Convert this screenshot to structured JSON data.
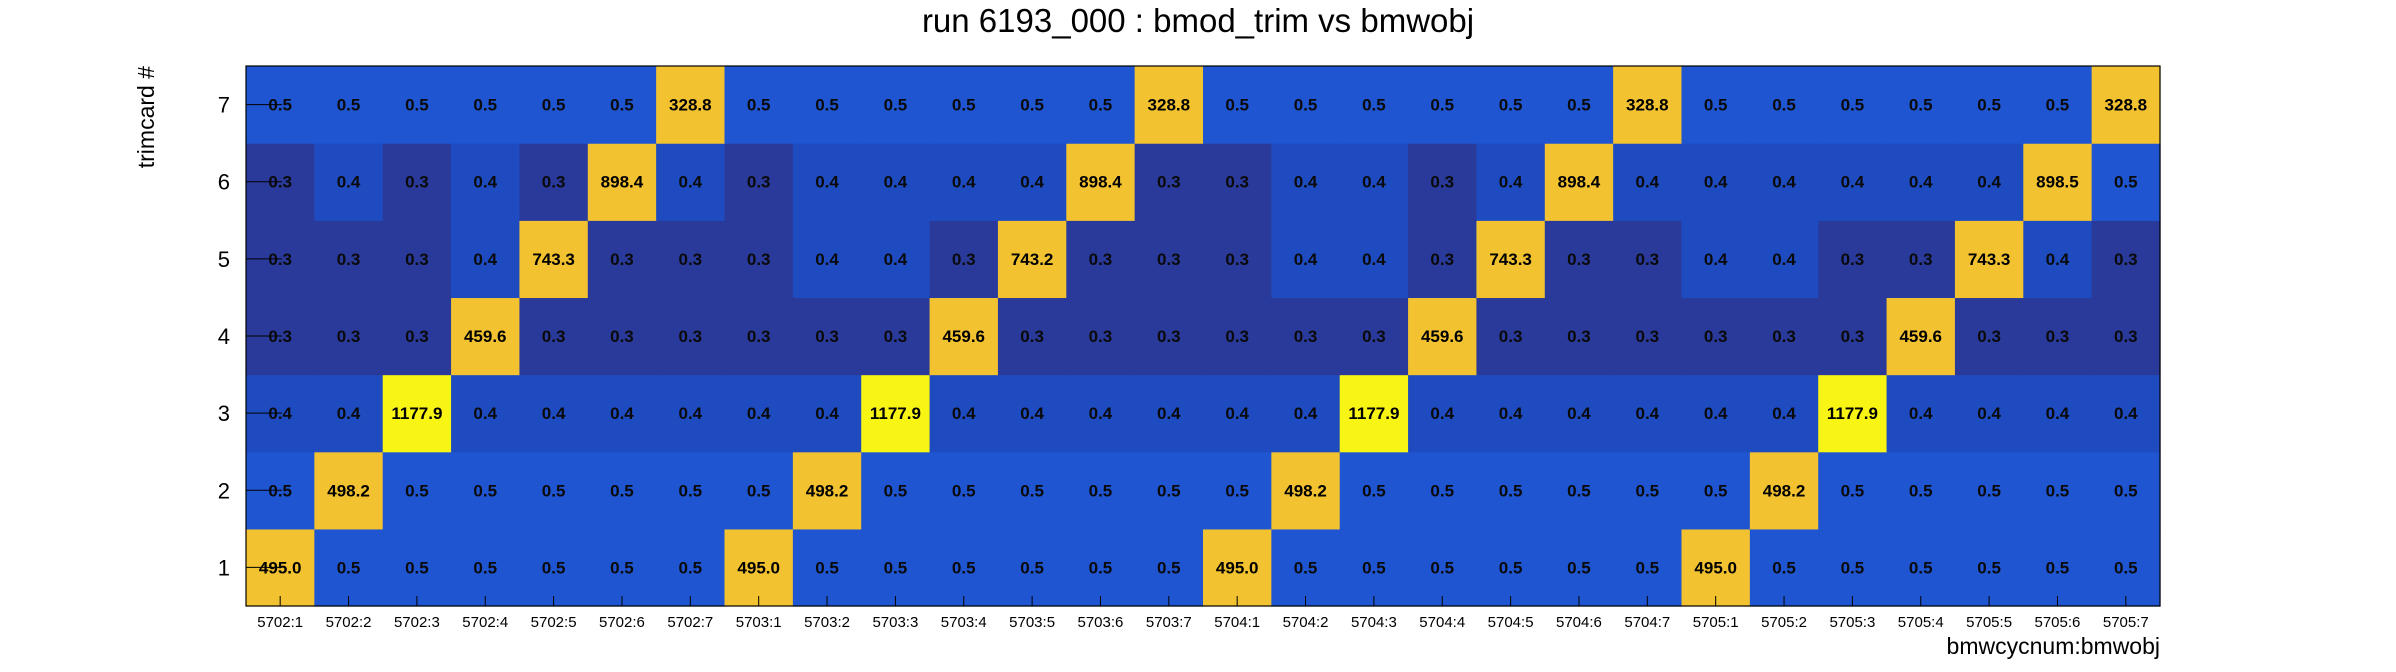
{
  "chart_data": {
    "type": "heatmap",
    "title": "run 6193_000 : bmod_trim vs bmwobj",
    "xlabel": "bmwcycnum:bmwobj",
    "ylabel": "trimcard #",
    "x_categories": [
      "5702:1",
      "5702:2",
      "5702:3",
      "5702:4",
      "5702:5",
      "5702:6",
      "5702:7",
      "5703:1",
      "5703:2",
      "5703:3",
      "5703:4",
      "5703:5",
      "5703:6",
      "5703:7",
      "5704:1",
      "5704:2",
      "5704:3",
      "5704:4",
      "5704:5",
      "5704:6",
      "5704:7",
      "5705:1",
      "5705:2",
      "5705:3",
      "5705:4",
      "5705:5",
      "5705:6",
      "5705:7"
    ],
    "y_categories": [
      "1",
      "2",
      "3",
      "4",
      "5",
      "6",
      "7"
    ],
    "values": [
      [
        "495.0",
        "0.5",
        "0.5",
        "0.5",
        "0.5",
        "0.5",
        "0.5",
        "495.0",
        "0.5",
        "0.5",
        "0.5",
        "0.5",
        "0.5",
        "0.5",
        "495.0",
        "0.5",
        "0.5",
        "0.5",
        "0.5",
        "0.5",
        "0.5",
        "495.0",
        "0.5",
        "0.5",
        "0.5",
        "0.5",
        "0.5",
        "0.5"
      ],
      [
        "0.5",
        "498.2",
        "0.5",
        "0.5",
        "0.5",
        "0.5",
        "0.5",
        "0.5",
        "498.2",
        "0.5",
        "0.5",
        "0.5",
        "0.5",
        "0.5",
        "0.5",
        "498.2",
        "0.5",
        "0.5",
        "0.5",
        "0.5",
        "0.5",
        "0.5",
        "498.2",
        "0.5",
        "0.5",
        "0.5",
        "0.5",
        "0.5"
      ],
      [
        "0.4",
        "0.4",
        "1177.9",
        "0.4",
        "0.4",
        "0.4",
        "0.4",
        "0.4",
        "0.4",
        "1177.9",
        "0.4",
        "0.4",
        "0.4",
        "0.4",
        "0.4",
        "0.4",
        "1177.9",
        "0.4",
        "0.4",
        "0.4",
        "0.4",
        "0.4",
        "0.4",
        "1177.9",
        "0.4",
        "0.4",
        "0.4",
        "0.4"
      ],
      [
        "0.3",
        "0.3",
        "0.3",
        "459.6",
        "0.3",
        "0.3",
        "0.3",
        "0.3",
        "0.3",
        "0.3",
        "459.6",
        "0.3",
        "0.3",
        "0.3",
        "0.3",
        "0.3",
        "0.3",
        "459.6",
        "0.3",
        "0.3",
        "0.3",
        "0.3",
        "0.3",
        "0.3",
        "459.6",
        "0.3",
        "0.3",
        "0.3"
      ],
      [
        "0.3",
        "0.3",
        "0.3",
        "0.4",
        "743.3",
        "0.3",
        "0.3",
        "0.3",
        "0.4",
        "0.4",
        "0.3",
        "743.2",
        "0.3",
        "0.3",
        "0.3",
        "0.4",
        "0.4",
        "0.3",
        "743.3",
        "0.3",
        "0.3",
        "0.4",
        "0.4",
        "0.3",
        "0.3",
        "743.3",
        "0.4",
        "0.3"
      ],
      [
        "0.3",
        "0.4",
        "0.3",
        "0.4",
        "0.3",
        "898.4",
        "0.4",
        "0.3",
        "0.4",
        "0.4",
        "0.4",
        "0.4",
        "898.4",
        "0.3",
        "0.3",
        "0.4",
        "0.4",
        "0.3",
        "0.4",
        "898.4",
        "0.4",
        "0.4",
        "0.4",
        "0.4",
        "0.4",
        "0.4",
        "898.5",
        "0.5"
      ],
      [
        "0.5",
        "0.5",
        "0.5",
        "0.5",
        "0.5",
        "0.5",
        "328.8",
        "0.5",
        "0.5",
        "0.5",
        "0.5",
        "0.5",
        "0.5",
        "328.8",
        "0.5",
        "0.5",
        "0.5",
        "0.5",
        "0.5",
        "0.5",
        "328.8",
        "0.5",
        "0.5",
        "0.5",
        "0.5",
        "0.5",
        "0.5",
        "328.8"
      ]
    ],
    "grid": false,
    "colors": {
      "low_03": "#2a3a9a",
      "low_04": "#1e4cc0",
      "low_05": "#1f55d0",
      "high_mid": "#f2c230",
      "high_peak": "#f8f414"
    }
  }
}
